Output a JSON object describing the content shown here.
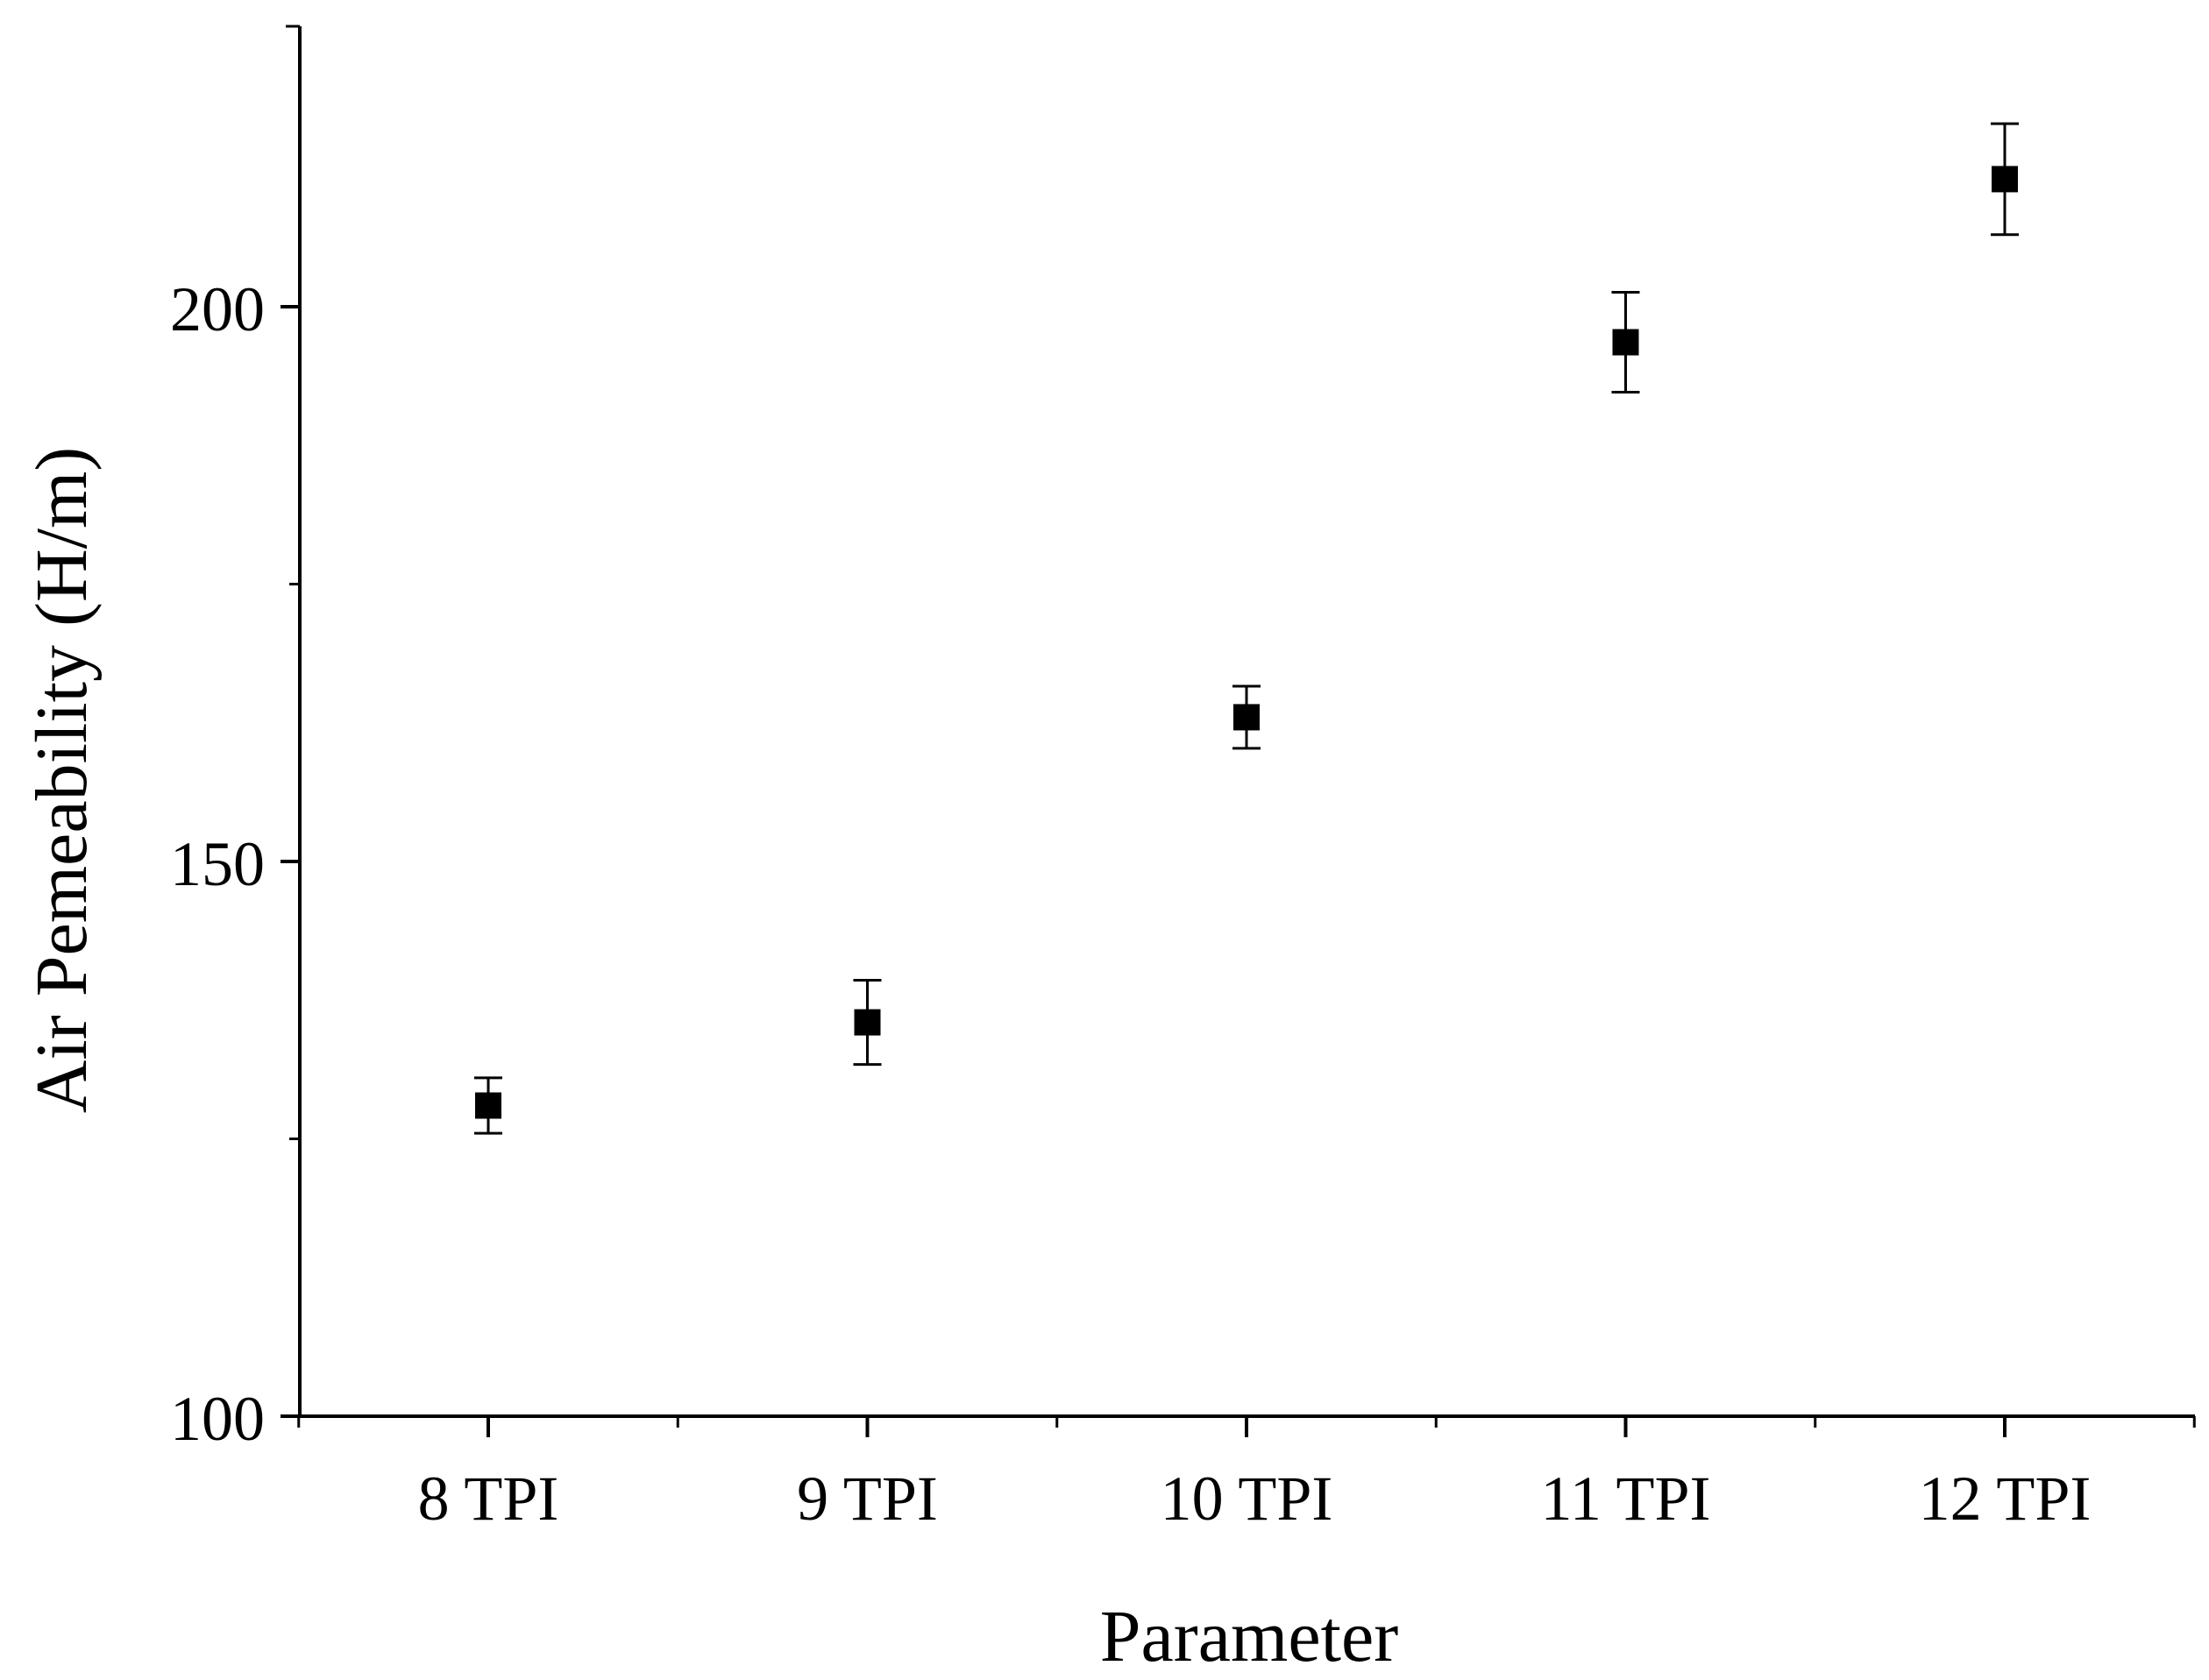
{
  "chart_data": {
    "type": "scatter",
    "title": "",
    "xlabel": "Parameter",
    "ylabel": "Air Pemeability (H/m)",
    "categories": [
      "8 TPI",
      "9 TPI",
      "10 TPI",
      "11 TPI",
      "12 TPI"
    ],
    "series": [
      {
        "values": [
          128.0,
          135.5,
          163.0,
          196.8,
          211.5
        ],
        "errors": [
          2.5,
          3.8,
          2.8,
          4.5,
          5.0
        ],
        "color": "#000000",
        "marker": "square"
      }
    ],
    "ylim": [
      100,
      225
    ],
    "yticks": [
      100,
      150,
      200
    ],
    "yticklabels": [
      "100",
      "150",
      "200"
    ],
    "grid": false,
    "legend": "none"
  }
}
